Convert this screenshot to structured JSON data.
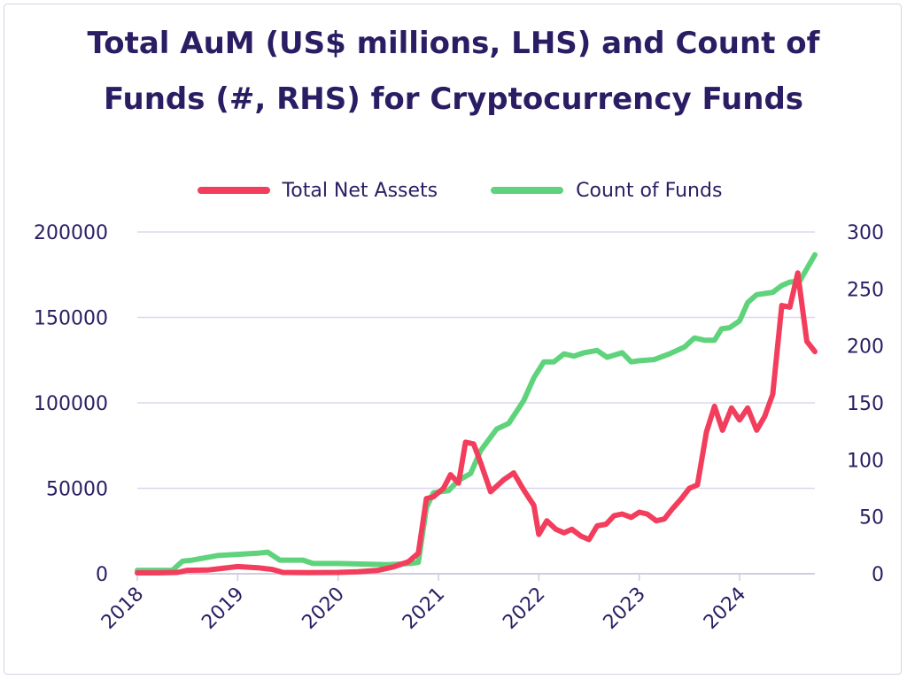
{
  "chart_data": {
    "type": "line",
    "title": "Total AuM (US$ millions, LHS) and Count of Funds (#, RHS) for Cryptocurrency Funds",
    "xlim": [
      2018.0,
      2024.75
    ],
    "x_ticks": [
      "2018",
      "2019",
      "2020",
      "2021",
      "2022",
      "2023",
      "2024"
    ],
    "y_left": {
      "lim": [
        0,
        200000
      ],
      "ticks": [
        "0",
        "50000",
        "100000",
        "150000",
        "200000"
      ]
    },
    "y_right": {
      "lim": [
        0,
        300
      ],
      "ticks": [
        "0",
        "50",
        "100",
        "150",
        "200",
        "250",
        "300"
      ]
    },
    "grid": true,
    "legend_position": "top",
    "series": [
      {
        "name": "Total Net Assets",
        "axis": "left",
        "color": "#f23e5c",
        "points": [
          [
            2018.0,
            500
          ],
          [
            2018.2,
            500
          ],
          [
            2018.4,
            800
          ],
          [
            2018.5,
            2000
          ],
          [
            2018.7,
            2200
          ],
          [
            2018.9,
            3500
          ],
          [
            2019.0,
            4200
          ],
          [
            2019.2,
            3500
          ],
          [
            2019.35,
            2500
          ],
          [
            2019.45,
            800
          ],
          [
            2019.7,
            600
          ],
          [
            2020.0,
            800
          ],
          [
            2020.2,
            1200
          ],
          [
            2020.4,
            2000
          ],
          [
            2020.55,
            4000
          ],
          [
            2020.7,
            7000
          ],
          [
            2020.8,
            12000
          ],
          [
            2020.88,
            44000
          ],
          [
            2020.95,
            45000
          ],
          [
            2021.05,
            50000
          ],
          [
            2021.12,
            58000
          ],
          [
            2021.2,
            53000
          ],
          [
            2021.27,
            77000
          ],
          [
            2021.35,
            76000
          ],
          [
            2021.42,
            65000
          ],
          [
            2021.52,
            48000
          ],
          [
            2021.65,
            55000
          ],
          [
            2021.75,
            59000
          ],
          [
            2021.85,
            49000
          ],
          [
            2021.95,
            40000
          ],
          [
            2022.0,
            23000
          ],
          [
            2022.08,
            31000
          ],
          [
            2022.17,
            26000
          ],
          [
            2022.25,
            24000
          ],
          [
            2022.33,
            26000
          ],
          [
            2022.42,
            22000
          ],
          [
            2022.5,
            20000
          ],
          [
            2022.58,
            28000
          ],
          [
            2022.67,
            29000
          ],
          [
            2022.75,
            34000
          ],
          [
            2022.83,
            35000
          ],
          [
            2022.92,
            33000
          ],
          [
            2023.0,
            36000
          ],
          [
            2023.08,
            35000
          ],
          [
            2023.17,
            31000
          ],
          [
            2023.25,
            32000
          ],
          [
            2023.33,
            38000
          ],
          [
            2023.42,
            44000
          ],
          [
            2023.5,
            50000
          ],
          [
            2023.58,
            52000
          ],
          [
            2023.67,
            83000
          ],
          [
            2023.75,
            98000
          ],
          [
            2023.83,
            84000
          ],
          [
            2023.92,
            97000
          ],
          [
            2024.0,
            90000
          ],
          [
            2024.08,
            97000
          ],
          [
            2024.17,
            84000
          ],
          [
            2024.25,
            92000
          ],
          [
            2024.33,
            105000
          ],
          [
            2024.42,
            157000
          ],
          [
            2024.5,
            156000
          ],
          [
            2024.58,
            176000
          ],
          [
            2024.67,
            136000
          ],
          [
            2024.75,
            130000
          ]
        ]
      },
      {
        "name": "Count of Funds",
        "axis": "right",
        "color": "#5fd37c",
        "points": [
          [
            2018.0,
            3
          ],
          [
            2018.35,
            3
          ],
          [
            2018.45,
            11
          ],
          [
            2018.55,
            12
          ],
          [
            2018.8,
            16
          ],
          [
            2019.0,
            17
          ],
          [
            2019.2,
            18
          ],
          [
            2019.3,
            19
          ],
          [
            2019.42,
            12
          ],
          [
            2019.65,
            12
          ],
          [
            2019.75,
            9
          ],
          [
            2020.0,
            9
          ],
          [
            2020.5,
            8
          ],
          [
            2020.72,
            9
          ],
          [
            2020.8,
            10
          ],
          [
            2020.88,
            58
          ],
          [
            2020.95,
            71
          ],
          [
            2021.1,
            73
          ],
          [
            2021.2,
            82
          ],
          [
            2021.32,
            88
          ],
          [
            2021.42,
            108
          ],
          [
            2021.58,
            127
          ],
          [
            2021.7,
            132
          ],
          [
            2021.85,
            152
          ],
          [
            2021.95,
            172
          ],
          [
            2022.05,
            186
          ],
          [
            2022.15,
            186
          ],
          [
            2022.25,
            193
          ],
          [
            2022.35,
            191
          ],
          [
            2022.45,
            194
          ],
          [
            2022.58,
            196
          ],
          [
            2022.68,
            190
          ],
          [
            2022.83,
            194
          ],
          [
            2022.92,
            186
          ],
          [
            2023.0,
            187
          ],
          [
            2023.15,
            188
          ],
          [
            2023.3,
            193
          ],
          [
            2023.45,
            199
          ],
          [
            2023.55,
            207
          ],
          [
            2023.65,
            205
          ],
          [
            2023.75,
            205
          ],
          [
            2023.82,
            215
          ],
          [
            2023.9,
            216
          ],
          [
            2024.0,
            222
          ],
          [
            2024.08,
            238
          ],
          [
            2024.17,
            245
          ],
          [
            2024.25,
            246
          ],
          [
            2024.33,
            247
          ],
          [
            2024.42,
            253
          ],
          [
            2024.5,
            256
          ],
          [
            2024.6,
            257
          ],
          [
            2024.75,
            280
          ]
        ]
      }
    ]
  }
}
